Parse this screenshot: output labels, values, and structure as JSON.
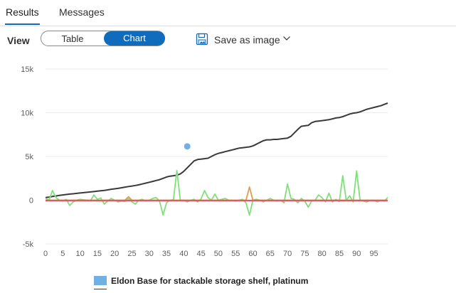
{
  "tabs": {
    "results_label": "Results",
    "messages_label": "Messages"
  },
  "toolbar": {
    "view_label": "View",
    "table_label": "Table",
    "chart_label": "Chart",
    "save_label": "Save as image",
    "save_icon": "save-image-icon",
    "chevron_icon": "chevron-down-icon"
  },
  "colors": {
    "accent": "#0f6cbd",
    "series_scatter": "#71afe5",
    "series_cumulative": "#3b3a39",
    "series_green": "#7fe07a",
    "series_orange": "#e59b4f",
    "series_red": "#d95c6a"
  },
  "chart_data": {
    "type": "line",
    "ylim": [
      -5000,
      15000
    ],
    "xlim": [
      0,
      99
    ],
    "yticks": [
      "15k",
      "10k",
      "5k",
      "0",
      "-5k"
    ],
    "ytick_values": [
      15000,
      10000,
      5000,
      0,
      -5000
    ],
    "xticks": [
      "0",
      "5",
      "10",
      "15",
      "20",
      "25",
      "30",
      "35",
      "40",
      "45",
      "50",
      "55",
      "60",
      "65",
      "70",
      "75",
      "80",
      "85",
      "90",
      "95"
    ],
    "xtick_values": [
      0,
      5,
      10,
      15,
      20,
      25,
      30,
      35,
      40,
      45,
      50,
      55,
      60,
      65,
      70,
      75,
      80,
      85,
      90,
      95
    ],
    "grid": true,
    "legend_position": "bottom",
    "series": [
      {
        "name": "Eldon Base for stackable storage shelf, platinum",
        "kind": "scatter",
        "color": "#71afe5",
        "points": [
          [
            41,
            6150
          ]
        ]
      },
      {
        "kind": "line",
        "color": "#3b3a39",
        "y": [
          300,
          350,
          420,
          480,
          550,
          600,
          650,
          700,
          730,
          780,
          820,
          860,
          900,
          940,
          980,
          1030,
          1080,
          1120,
          1180,
          1250,
          1300,
          1350,
          1420,
          1500,
          1560,
          1620,
          1680,
          1760,
          1850,
          1950,
          2050,
          2150,
          2250,
          2350,
          2500,
          2650,
          2750,
          2800,
          2850,
          3000,
          3300,
          3700,
          4100,
          4500,
          4650,
          4700,
          4750,
          4800,
          5000,
          5200,
          5350,
          5450,
          5550,
          5650,
          5750,
          5850,
          5950,
          6000,
          6050,
          6100,
          6200,
          6400,
          6600,
          6800,
          6900,
          6900,
          6950,
          6950,
          7000,
          7050,
          7100,
          7300,
          7700,
          8100,
          8450,
          8500,
          8550,
          8850,
          9000,
          9050,
          9100,
          9150,
          9200,
          9300,
          9400,
          9450,
          9550,
          9700,
          9850,
          9950,
          10000,
          10100,
          10250,
          10400,
          10500,
          10600,
          10700,
          10800,
          10950,
          11100
        ]
      },
      {
        "kind": "line",
        "color": "#7fe07a",
        "y": [
          200,
          0,
          1100,
          300,
          0,
          -100,
          100,
          -600,
          -200,
          0,
          100,
          50,
          0,
          -50,
          600,
          100,
          250,
          -450,
          -100,
          200,
          0,
          -200,
          -100,
          -150,
          200,
          -200,
          -450,
          0,
          100,
          -100,
          0,
          200,
          300,
          -100,
          -1700,
          -300,
          0,
          50,
          3400,
          0,
          0,
          -200,
          0,
          100,
          -200,
          150,
          1100,
          300,
          0,
          700,
          0,
          100,
          200,
          0,
          0,
          -100,
          0,
          100,
          -300,
          -1700,
          0,
          100,
          0,
          -200,
          0,
          200,
          0,
          -100,
          0,
          -300,
          1850,
          200,
          100,
          -300,
          200,
          -100,
          -800,
          -100,
          0,
          600,
          300,
          -200,
          800,
          -200,
          100,
          -150,
          2800,
          0,
          500,
          -200,
          3350,
          0,
          -100,
          -200,
          0,
          0,
          -200,
          0,
          -100,
          300
        ]
      },
      {
        "kind": "line",
        "color": "#e59b4f",
        "y": [
          0,
          0,
          0,
          0,
          0,
          0,
          0,
          0,
          0,
          0,
          0,
          0,
          0,
          0,
          0,
          0,
          0,
          0,
          0,
          0,
          0,
          0,
          0,
          0,
          400,
          0,
          0,
          0,
          0,
          0,
          0,
          0,
          0,
          0,
          0,
          0,
          0,
          0,
          0,
          0,
          0,
          0,
          0,
          0,
          0,
          0,
          0,
          0,
          0,
          0,
          0,
          0,
          0,
          0,
          0,
          0,
          0,
          0,
          0,
          1500,
          0,
          0,
          0,
          0,
          0,
          0,
          0,
          0,
          0,
          0,
          0,
          0,
          0,
          0,
          0,
          0,
          0,
          0,
          0,
          0,
          0,
          0,
          0,
          0,
          0,
          0,
          0,
          0,
          0,
          0,
          0,
          0,
          0,
          0,
          0,
          0,
          0,
          0,
          0,
          0
        ]
      },
      {
        "kind": "line",
        "color": "#d95c6a",
        "y": [
          -50,
          -50,
          -50,
          -50,
          -50,
          -50,
          -50,
          -50,
          -50,
          -50,
          -50,
          -50,
          -50,
          -50,
          -50,
          -50,
          -50,
          -50,
          -50,
          -50,
          -50,
          -50,
          -50,
          -50,
          -50,
          -50,
          -50,
          -50,
          -50,
          -50,
          -50,
          -50,
          -50,
          -50,
          -50,
          -50,
          -50,
          -50,
          -50,
          -50,
          -50,
          -50,
          -50,
          -50,
          -50,
          -50,
          -50,
          -50,
          -50,
          -50,
          -50,
          -50,
          -50,
          -50,
          -50,
          -50,
          -50,
          -50,
          -50,
          -50,
          -50,
          -50,
          -50,
          -50,
          -50,
          -50,
          -50,
          -50,
          -50,
          -50,
          -50,
          -50,
          -50,
          -50,
          -50,
          -50,
          -50,
          -50,
          -50,
          -50,
          -50,
          -50,
          -50,
          -50,
          -50,
          -50,
          -50,
          -50,
          -50,
          -50,
          -50,
          -50,
          -50,
          -50,
          -50,
          -50,
          -50,
          -50,
          -50,
          -50
        ]
      }
    ]
  }
}
